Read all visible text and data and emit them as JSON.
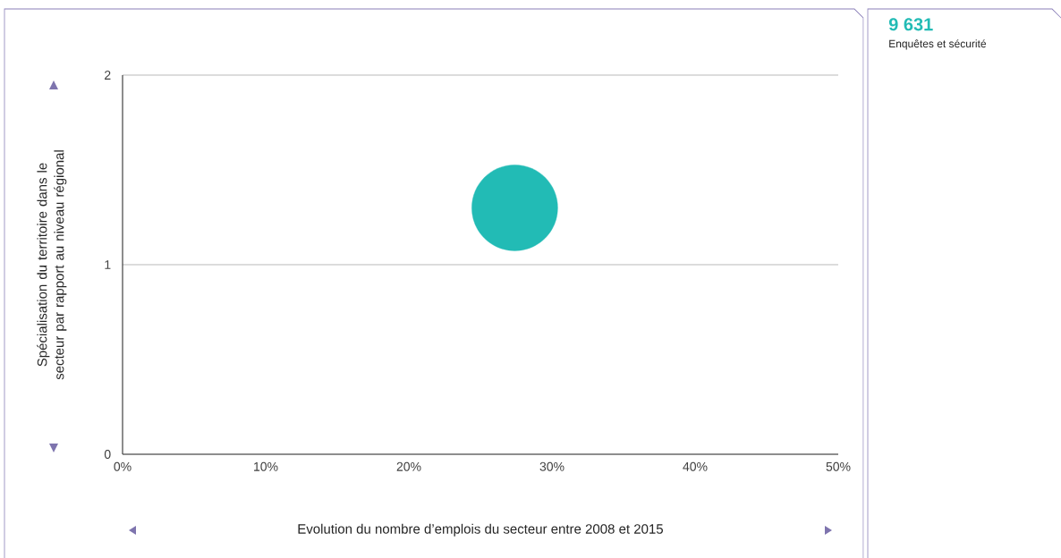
{
  "chart_data": {
    "type": "bubble",
    "xlabel": "Evolution du nombre d’emplois du secteur entre 2008 et 2015",
    "ylabel": "Spécialisation du territoire dans le secteur par rapport au niveau régional",
    "series": [
      {
        "name": "Enquêtes et sécurité",
        "color": "#22bbb5",
        "x": [
          27.4
        ],
        "values": [
          1.3
        ],
        "sizes": [
          1
        ]
      }
    ],
    "annotations": [
      "9 631"
    ],
    "xlim": [
      0,
      50
    ],
    "xticks": [
      {
        "value": 0,
        "label": "0%"
      },
      {
        "value": 10,
        "label": "10%"
      },
      {
        "value": 20,
        "label": "20%"
      },
      {
        "value": 30,
        "label": "30%"
      },
      {
        "value": 40,
        "label": "40%"
      },
      {
        "value": 50,
        "label": "50%"
      }
    ],
    "ylim": [
      0,
      2
    ],
    "yticks": [
      0,
      1,
      2
    ],
    "grid": "y",
    "legend": "right"
  }
}
